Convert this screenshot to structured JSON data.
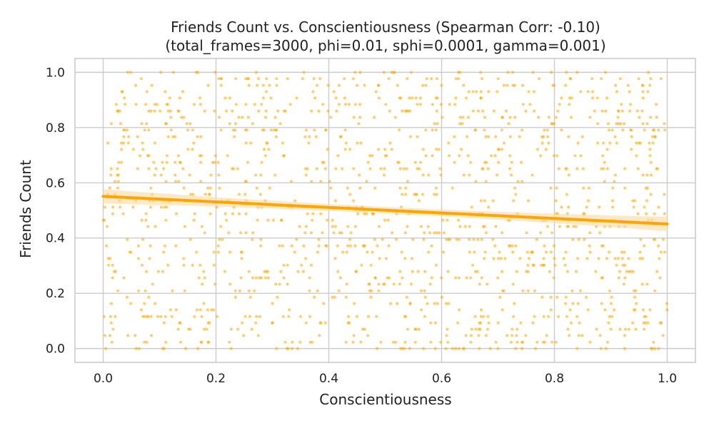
{
  "chart_data": {
    "type": "scatter",
    "title": "Friends Count vs. Conscientiousness (Spearman Corr: -0.10)",
    "subtitle": "(total_frames=3000, phi=0.01, sphi=0.0001, gamma=0.001)",
    "xlabel": "Conscientiousness",
    "ylabel": "Friends Count",
    "xlim": [
      -0.05,
      1.05
    ],
    "ylim": [
      -0.05,
      1.05
    ],
    "xticks": [
      0.0,
      0.2,
      0.4,
      0.6,
      0.8,
      1.0
    ],
    "yticks": [
      0.0,
      0.2,
      0.4,
      0.6,
      0.8,
      1.0
    ],
    "xtick_labels": [
      "0.0",
      "0.2",
      "0.4",
      "0.6",
      "0.8",
      "1.0"
    ],
    "ytick_labels": [
      "0.0",
      "0.2",
      "0.4",
      "0.6",
      "0.8",
      "1.0"
    ],
    "grid": true,
    "point_color": "#ffa500",
    "line_color": "#ffa500",
    "band_color": "#ffd9a0",
    "y_levels": [
      0.0,
      0.023,
      0.047,
      0.07,
      0.093,
      0.116,
      0.14,
      0.163,
      0.186,
      0.209,
      0.233,
      0.256,
      0.279,
      0.302,
      0.326,
      0.349,
      0.372,
      0.395,
      0.419,
      0.442,
      0.465,
      0.488,
      0.512,
      0.535,
      0.558,
      0.581,
      0.605,
      0.628,
      0.651,
      0.674,
      0.698,
      0.721,
      0.744,
      0.767,
      0.791,
      0.814,
      0.837,
      0.86,
      0.884,
      0.907,
      0.93,
      0.953,
      0.977,
      1.0
    ],
    "points_estimated": true,
    "point_count": 1400,
    "regression": {
      "x": [
        0.0,
        1.0
      ],
      "y": [
        0.551,
        0.451
      ],
      "ci_lower": [
        0.525,
        0.425
      ],
      "ci_upper": [
        0.577,
        0.477
      ],
      "ci_at_center": 0.012
    }
  }
}
